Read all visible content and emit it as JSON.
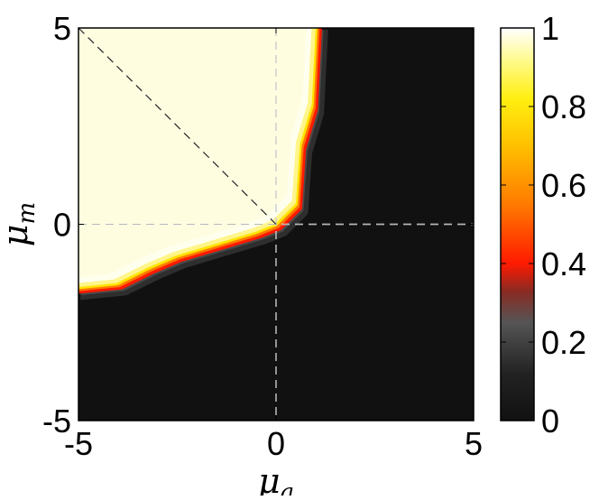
{
  "chart_data": {
    "type": "heatmap",
    "title": "",
    "xlabel": "μa",
    "ylabel": "μm",
    "xlabel_parts": {
      "base": "μ",
      "sub": "a"
    },
    "ylabel_parts": {
      "base": "μ",
      "sub": "m"
    },
    "xlim": [
      -5,
      5
    ],
    "ylim": [
      -5,
      5
    ],
    "x_ticks": [
      -5,
      0,
      5
    ],
    "y_ticks": [
      -5,
      0,
      5
    ],
    "x_tick_labels": [
      "-5",
      "0",
      "5"
    ],
    "y_tick_labels": [
      "-5",
      "0",
      "5"
    ],
    "colorbar": {
      "range": [
        0,
        1
      ],
      "ticks": [
        0,
        0.2,
        0.4,
        0.6,
        0.8,
        1
      ],
      "tick_labels": [
        "0",
        "0.2",
        "0.4",
        "0.6",
        "0.8",
        "1"
      ],
      "colormap": "hot",
      "stops": [
        "#111111",
        "#3a3a3a",
        "#ff1c00",
        "#ff8a00",
        "#ffe900",
        "#ffffee"
      ]
    },
    "high_region_boundary": [
      {
        "x": -5.0,
        "y": -1.6
      },
      {
        "x": -4.0,
        "y": -1.5
      },
      {
        "x": -3.2,
        "y": -1.1
      },
      {
        "x": -2.5,
        "y": -0.8
      },
      {
        "x": -1.5,
        "y": -0.5
      },
      {
        "x": -0.5,
        "y": -0.2
      },
      {
        "x": 0.0,
        "y": 0.0
      },
      {
        "x": 0.5,
        "y": 0.5
      },
      {
        "x": 0.6,
        "y": 2.0
      },
      {
        "x": 0.9,
        "y": 3.0
      },
      {
        "x": 1.0,
        "y": 5.0
      }
    ],
    "high_value": 1,
    "low_value": 0,
    "reference_lines": [
      {
        "type": "vertical",
        "x": 0,
        "style": "dashed"
      },
      {
        "type": "horizontal",
        "y": 0,
        "style": "dashed"
      },
      {
        "type": "diagonal",
        "from": [
          -5,
          5
        ],
        "to": [
          0,
          0
        ],
        "style": "dashed"
      }
    ],
    "grid": false,
    "legend": "colorbar-right"
  }
}
